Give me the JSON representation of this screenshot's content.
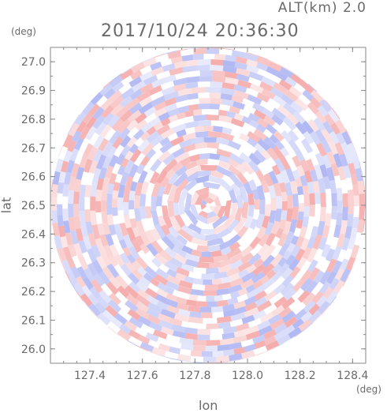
{
  "header": {
    "altitude_label": "ALT(km) 2.0",
    "timestamp": "2017/10/24 20:36:30"
  },
  "chart_data": {
    "type": "heatmap",
    "title": "2017/10/24 20:36:30",
    "subtitle": "ALT(km) 2.0",
    "xlabel": "lon",
    "ylabel": "lat",
    "x_unit": "(deg)",
    "y_unit": "(deg)",
    "xlim": [
      127.25,
      128.45
    ],
    "ylim": [
      25.95,
      27.05
    ],
    "x_ticks": [
      127.4,
      127.6,
      127.8,
      128.0,
      128.2,
      128.4
    ],
    "x_tick_labels": [
      "127.4",
      "127.6",
      "127.8",
      "128.0",
      "128.2",
      "128.4"
    ],
    "y_ticks": [
      26.0,
      26.1,
      26.2,
      26.3,
      26.4,
      26.5,
      26.6,
      26.7,
      26.8,
      26.9,
      27.0
    ],
    "y_tick_labels": [
      "26.0",
      "26.1",
      "26.2",
      "26.3",
      "26.4",
      "26.5",
      "26.6",
      "26.7",
      "26.8",
      "26.9",
      "27.0"
    ],
    "center": {
      "lon": 127.85,
      "lat": 26.5
    },
    "range_radius_deg_lon": 0.6,
    "colors": {
      "positive": "#f4a3a3",
      "negative": "#a9b1f2",
      "frame": "#888888"
    },
    "grid": false
  }
}
